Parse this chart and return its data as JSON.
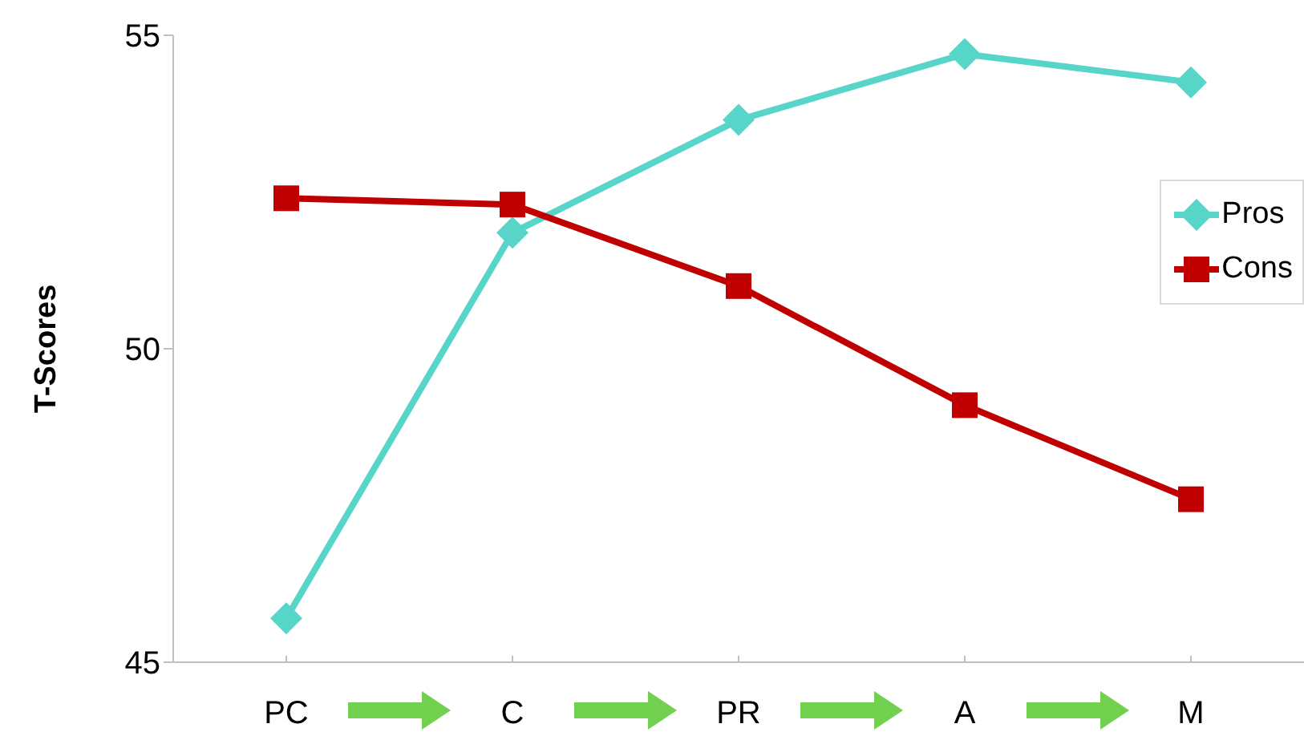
{
  "chart_data": {
    "type": "line",
    "ylabel": "T-Scores",
    "categories": [
      "PC",
      "C",
      "PR",
      "A",
      "M"
    ],
    "series": [
      {
        "name": "Pros",
        "color": "#57d5c8",
        "marker": "diamond",
        "values": [
          45.7,
          51.85,
          53.65,
          54.7,
          54.25
        ]
      },
      {
        "name": "Cons",
        "color": "#c00000",
        "marker": "square",
        "values": [
          52.4,
          52.3,
          51.0,
          49.1,
          47.6
        ]
      }
    ],
    "ylim": [
      45,
      55
    ],
    "yticks": [
      45,
      50,
      55
    ],
    "grid": false,
    "legend": "right",
    "line_style": "solid"
  }
}
